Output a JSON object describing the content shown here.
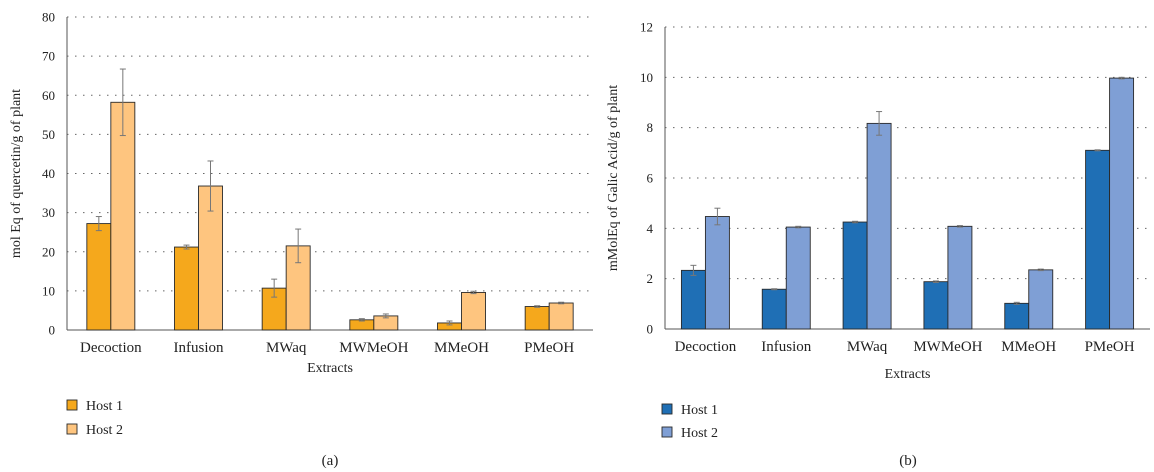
{
  "chart_data": [
    {
      "panel_label": "(a)",
      "type": "bar",
      "title": "",
      "xlabel": "Extracts",
      "ylabel": "mol Eq of quercetin/g of plant",
      "ylim": [
        0,
        80
      ],
      "yticks": [
        0,
        10,
        20,
        30,
        40,
        50,
        60,
        70,
        80
      ],
      "grid": "horizontal-dotted",
      "legend_placement": "bottom-left",
      "categories": [
        "Decoction",
        "Infusion",
        "MWaq",
        "MWMeOH",
        "MMeOH",
        "PMeOH"
      ],
      "series": [
        {
          "name": "Host 1",
          "color": "#F5A81C",
          "values": [
            27.2,
            21.2,
            10.7,
            2.6,
            1.8,
            6.0
          ],
          "errors": [
            1.8,
            0.5,
            2.3,
            0.3,
            0.5,
            0.2
          ]
        },
        {
          "name": "Host 2",
          "color": "#FEC57F",
          "values": [
            58.2,
            36.8,
            21.5,
            3.6,
            9.6,
            6.9
          ],
          "errors": [
            8.5,
            6.4,
            4.3,
            0.5,
            0.3,
            0.2
          ]
        }
      ]
    },
    {
      "panel_label": "(b)",
      "type": "bar",
      "title": "",
      "xlabel": "Extracts",
      "ylabel": "mMolEq of Galic Acid/g of plant",
      "ylim": [
        0,
        12
      ],
      "yticks": [
        0,
        2,
        4,
        6,
        8,
        10,
        12
      ],
      "grid": "horizontal-dotted",
      "legend_placement": "bottom-left",
      "categories": [
        "Decoction",
        "Infusion",
        "MWaq",
        "MWMeOH",
        "MMeOH",
        "PMeOH"
      ],
      "series": [
        {
          "name": "Host 1",
          "color": "#1F6FB5",
          "values": [
            2.33,
            1.58,
            4.25,
            1.88,
            1.02,
            7.1
          ],
          "errors": [
            0.2,
            0.02,
            0.03,
            0.03,
            0.04,
            0.02
          ]
        },
        {
          "name": "Host 2",
          "color": "#7F9FD5",
          "values": [
            4.47,
            4.05,
            8.17,
            4.08,
            2.35,
            9.97
          ],
          "errors": [
            0.33,
            0.03,
            0.47,
            0.03,
            0.03,
            0.03
          ]
        }
      ]
    }
  ]
}
